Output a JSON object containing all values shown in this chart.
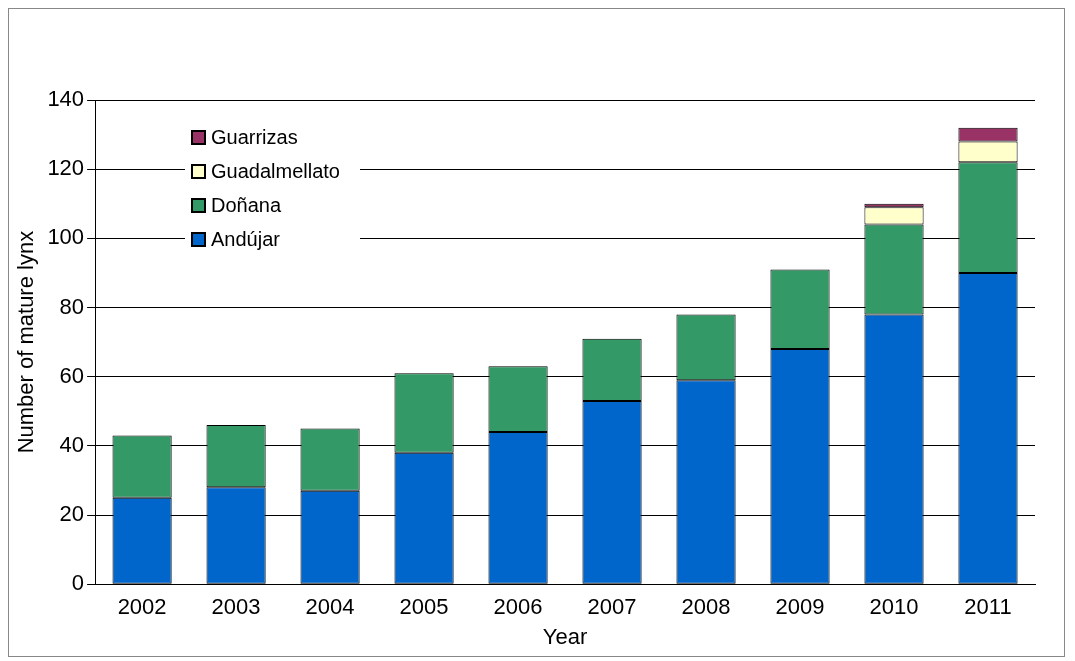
{
  "chart_data": {
    "type": "bar",
    "stacked": true,
    "xlabel": "Year",
    "ylabel": "Number of mature lynx",
    "categories": [
      "2002",
      "2003",
      "2004",
      "2005",
      "2006",
      "2007",
      "2008",
      "2009",
      "2010",
      "2011"
    ],
    "series": [
      {
        "name": "Andújar",
        "color": "#0066cc",
        "values": [
          25,
          28,
          27,
          38,
          44,
          53,
          59,
          68,
          78,
          90
        ]
      },
      {
        "name": "Doñana",
        "color": "#339966",
        "values": [
          18,
          18,
          18,
          23,
          19,
          18,
          19,
          23,
          26,
          32
        ]
      },
      {
        "name": "Guadalmellato",
        "color": "#ffffcc",
        "values": [
          null,
          null,
          null,
          null,
          null,
          null,
          null,
          null,
          5,
          6
        ]
      },
      {
        "name": "Guarrizas",
        "color": "#993366",
        "values": [
          null,
          null,
          null,
          null,
          null,
          null,
          null,
          null,
          1,
          4
        ]
      }
    ],
    "ylim": [
      0,
      140
    ],
    "yticks": [
      0,
      20,
      40,
      60,
      80,
      100,
      120,
      140
    ],
    "grid": "y",
    "legend": "top left"
  }
}
